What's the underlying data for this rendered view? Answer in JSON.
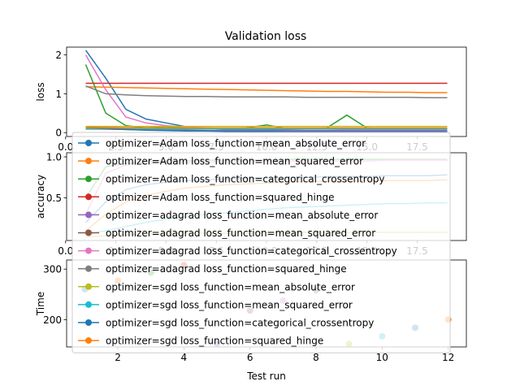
{
  "chart_data": [
    {
      "type": "line",
      "title": "Validation loss",
      "xlabel": "",
      "ylabel": "loss",
      "xlim": [
        0.05,
        19.95
      ],
      "ylim": [
        -0.1,
        2.2
      ],
      "xticks": [
        0,
        2.5,
        5.0,
        7.5,
        10.0,
        12.5,
        15.0,
        17.5
      ],
      "xtick_labels": [
        "0.0",
        "2.5",
        "5.0",
        "7.5",
        "10.0",
        "12.5",
        "15.0",
        "17.5"
      ],
      "yticks": [
        0,
        1,
        2
      ],
      "ytick_labels": [
        "0",
        "1",
        "2"
      ],
      "x": [
        1,
        2,
        3,
        4,
        5,
        6,
        7,
        8,
        9,
        10,
        11,
        12,
        13,
        14,
        15,
        16,
        17,
        18,
        19
      ],
      "series": [
        {
          "name": "optimizer=Adam loss_function=mean_absolute_error",
          "color": "#1f77b4",
          "values": [
            2.12,
            1.4,
            0.6,
            0.35,
            0.25,
            0.15,
            0.1,
            0.08,
            0.07,
            0.06,
            0.06,
            0.05,
            0.05,
            0.05,
            0.04,
            0.04,
            0.04,
            0.04,
            0.04
          ]
        },
        {
          "name": "optimizer=Adam loss_function=mean_squared_error",
          "color": "#ff7f0e",
          "values": [
            1.18,
            1.17,
            1.16,
            1.15,
            1.14,
            1.13,
            1.12,
            1.11,
            1.1,
            1.09,
            1.08,
            1.07,
            1.06,
            1.06,
            1.05,
            1.04,
            1.04,
            1.03,
            1.03
          ]
        },
        {
          "name": "optimizer=Adam loss_function=categorical_crossentropy",
          "color": "#2ca02c",
          "values": [
            1.75,
            0.5,
            0.18,
            0.12,
            0.15,
            0.12,
            0.1,
            0.1,
            0.12,
            0.2,
            0.1,
            0.1,
            0.12,
            0.45,
            0.12,
            0.1,
            0.1,
            0.1,
            0.1
          ]
        },
        {
          "name": "optimizer=Adam loss_function=squared_hinge",
          "color": "#d62728",
          "values": [
            1.27,
            1.27,
            1.27,
            1.27,
            1.27,
            1.27,
            1.27,
            1.27,
            1.27,
            1.27,
            1.27,
            1.27,
            1.27,
            1.27,
            1.27,
            1.27,
            1.27,
            1.27,
            1.27
          ]
        },
        {
          "name": "optimizer=adagrad loss_function=mean_absolute_error",
          "color": "#9467bd",
          "values": [
            0.1,
            0.09,
            0.08,
            0.07,
            0.06,
            0.06,
            0.05,
            0.05,
            0.05,
            0.05,
            0.05,
            0.05,
            0.05,
            0.05,
            0.05,
            0.05,
            0.05,
            0.05,
            0.05
          ]
        },
        {
          "name": "optimizer=adagrad loss_function=mean_squared_error",
          "color": "#8c564b",
          "values": [
            0.14,
            0.13,
            0.12,
            0.12,
            0.11,
            0.11,
            0.1,
            0.1,
            0.1,
            0.1,
            0.1,
            0.1,
            0.1,
            0.1,
            0.1,
            0.1,
            0.1,
            0.1,
            0.1
          ]
        },
        {
          "name": "optimizer=adagrad loss_function=categorical_crossentropy",
          "color": "#e377c2",
          "values": [
            2.0,
            1.1,
            0.4,
            0.25,
            0.18,
            0.14,
            0.12,
            0.11,
            0.1,
            0.1,
            0.09,
            0.09,
            0.09,
            0.08,
            0.08,
            0.08,
            0.08,
            0.08,
            0.08
          ]
        },
        {
          "name": "optimizer=adagrad loss_function=squared_hinge",
          "color": "#7f7f7f",
          "values": [
            1.2,
            1.0,
            0.97,
            0.95,
            0.94,
            0.93,
            0.93,
            0.92,
            0.92,
            0.92,
            0.92,
            0.91,
            0.91,
            0.91,
            0.91,
            0.91,
            0.91,
            0.9,
            0.9
          ]
        },
        {
          "name": "optimizer=sgd loss_function=mean_absolute_error",
          "color": "#bcbd22",
          "values": [
            0.16,
            0.16,
            0.16,
            0.16,
            0.16,
            0.16,
            0.16,
            0.16,
            0.16,
            0.16,
            0.16,
            0.16,
            0.16,
            0.16,
            0.16,
            0.16,
            0.16,
            0.16,
            0.16
          ]
        },
        {
          "name": "optimizer=sgd loss_function=mean_squared_error",
          "color": "#17becf",
          "values": [
            0.09,
            0.09,
            0.09,
            0.09,
            0.09,
            0.09,
            0.09,
            0.09,
            0.09,
            0.09,
            0.09,
            0.09,
            0.09,
            0.09,
            0.09,
            0.09,
            0.09,
            0.09,
            0.09
          ]
        },
        {
          "name": "optimizer=sgd loss_function=categorical_crossentropy",
          "color": "#1f77b4",
          "values": [
            0.12,
            0.1,
            0.08,
            0.06,
            0.05,
            0.04,
            0.04,
            0.03,
            0.03,
            0.03,
            0.02,
            0.02,
            0.02,
            0.02,
            0.02,
            0.02,
            0.02,
            0.02,
            0.02
          ]
        },
        {
          "name": "optimizer=sgd loss_function=squared_hinge",
          "color": "#ff7f0e",
          "values": [
            0.12,
            0.12,
            0.12,
            0.12,
            0.12,
            0.12,
            0.12,
            0.12,
            0.12,
            0.12,
            0.12,
            0.12,
            0.12,
            0.12,
            0.12,
            0.12,
            0.12,
            0.12,
            0.12
          ]
        }
      ],
      "legend": "overlapping-center",
      "grid": false
    },
    {
      "type": "line",
      "title": "",
      "xlabel": "",
      "ylabel": "accuracy",
      "xlim": [
        0.05,
        19.95
      ],
      "ylim": [
        -0.02,
        1.05
      ],
      "xticks": [
        0,
        2.5,
        5.0,
        7.5,
        10.0,
        12.5,
        15.0,
        17.5
      ],
      "xtick_labels": [
        "0.0",
        "2.5",
        "5.0",
        "7.5",
        "10.0",
        "12.5",
        "15.0",
        "17.5"
      ],
      "yticks": [
        0.5,
        1.0
      ],
      "ytick_labels": [
        "0.5",
        "1.0"
      ],
      "x": [
        1,
        2,
        3,
        4,
        5,
        6,
        7,
        8,
        9,
        10,
        11,
        12,
        13,
        14,
        15,
        16,
        17,
        18,
        19
      ],
      "series": [
        {
          "color": "#1f77b4",
          "values": [
            0.2,
            0.45,
            0.6,
            0.66,
            0.69,
            0.71,
            0.72,
            0.73,
            0.74,
            0.74,
            0.75,
            0.75,
            0.76,
            0.76,
            0.76,
            0.77,
            0.77,
            0.77,
            0.78
          ]
        },
        {
          "color": "#ff7f0e",
          "values": [
            0.1,
            0.3,
            0.45,
            0.53,
            0.58,
            0.62,
            0.64,
            0.66,
            0.67,
            0.68,
            0.69,
            0.7,
            0.7,
            0.7,
            0.71,
            0.71,
            0.71,
            0.71,
            0.72
          ]
        },
        {
          "color": "#2ca02c",
          "values": [
            0.5,
            0.88,
            0.92,
            0.94,
            0.95,
            0.95,
            0.96,
            0.96,
            0.96,
            0.96,
            0.97,
            0.97,
            0.97,
            0.97,
            0.97,
            0.97,
            0.97,
            0.97,
            0.97
          ]
        },
        {
          "color": "#e377c2",
          "values": [
            0.3,
            0.8,
            0.9,
            0.92,
            0.93,
            0.93,
            0.94,
            0.94,
            0.95,
            0.95,
            0.95,
            0.95,
            0.95,
            0.95,
            0.95,
            0.96,
            0.96,
            0.96,
            0.96
          ]
        },
        {
          "color": "#17becf",
          "values": [
            0.05,
            0.1,
            0.15,
            0.2,
            0.24,
            0.27,
            0.3,
            0.32,
            0.34,
            0.36,
            0.38,
            0.39,
            0.4,
            0.41,
            0.42,
            0.43,
            0.43,
            0.44,
            0.44
          ]
        },
        {
          "color": "#bcbd22",
          "values": [
            0.02,
            0.04,
            0.05,
            0.06,
            0.06,
            0.07,
            0.07,
            0.07,
            0.07,
            0.08,
            0.08,
            0.08,
            0.08,
            0.08,
            0.08,
            0.08,
            0.08,
            0.08,
            0.08
          ]
        }
      ],
      "grid": false
    },
    {
      "type": "scatter",
      "title": "",
      "xlabel": "Test run",
      "ylabel": "Time",
      "xlim": [
        0.45,
        12.55
      ],
      "ylim": [
        146,
        318
      ],
      "xticks": [
        2,
        4,
        6,
        8,
        10,
        12
      ],
      "xtick_labels": [
        "2",
        "4",
        "6",
        "8",
        "10",
        "12"
      ],
      "yticks": [
        200,
        300
      ],
      "ytick_labels": [
        "200",
        "300"
      ],
      "points": [
        {
          "x": 1,
          "y": 260,
          "color": "#1f77b4"
        },
        {
          "x": 2,
          "y": 277,
          "color": "#ff7f0e"
        },
        {
          "x": 3,
          "y": 293,
          "color": "#2ca02c"
        },
        {
          "x": 4,
          "y": 308,
          "color": "#d62728"
        },
        {
          "x": 5,
          "y": 152,
          "color": "#9467bd"
        },
        {
          "x": 6,
          "y": 218,
          "color": "#8c564b"
        },
        {
          "x": 7,
          "y": 238,
          "color": "#e377c2"
        },
        {
          "x": 8,
          "y": 258,
          "color": "#7f7f7f"
        },
        {
          "x": 9,
          "y": 152,
          "color": "#bcbd22"
        },
        {
          "x": 10,
          "y": 167,
          "color": "#17becf"
        },
        {
          "x": 11,
          "y": 184,
          "color": "#1f77b4"
        },
        {
          "x": 12,
          "y": 200,
          "color": "#ff7f0e"
        }
      ],
      "grid": false
    }
  ]
}
